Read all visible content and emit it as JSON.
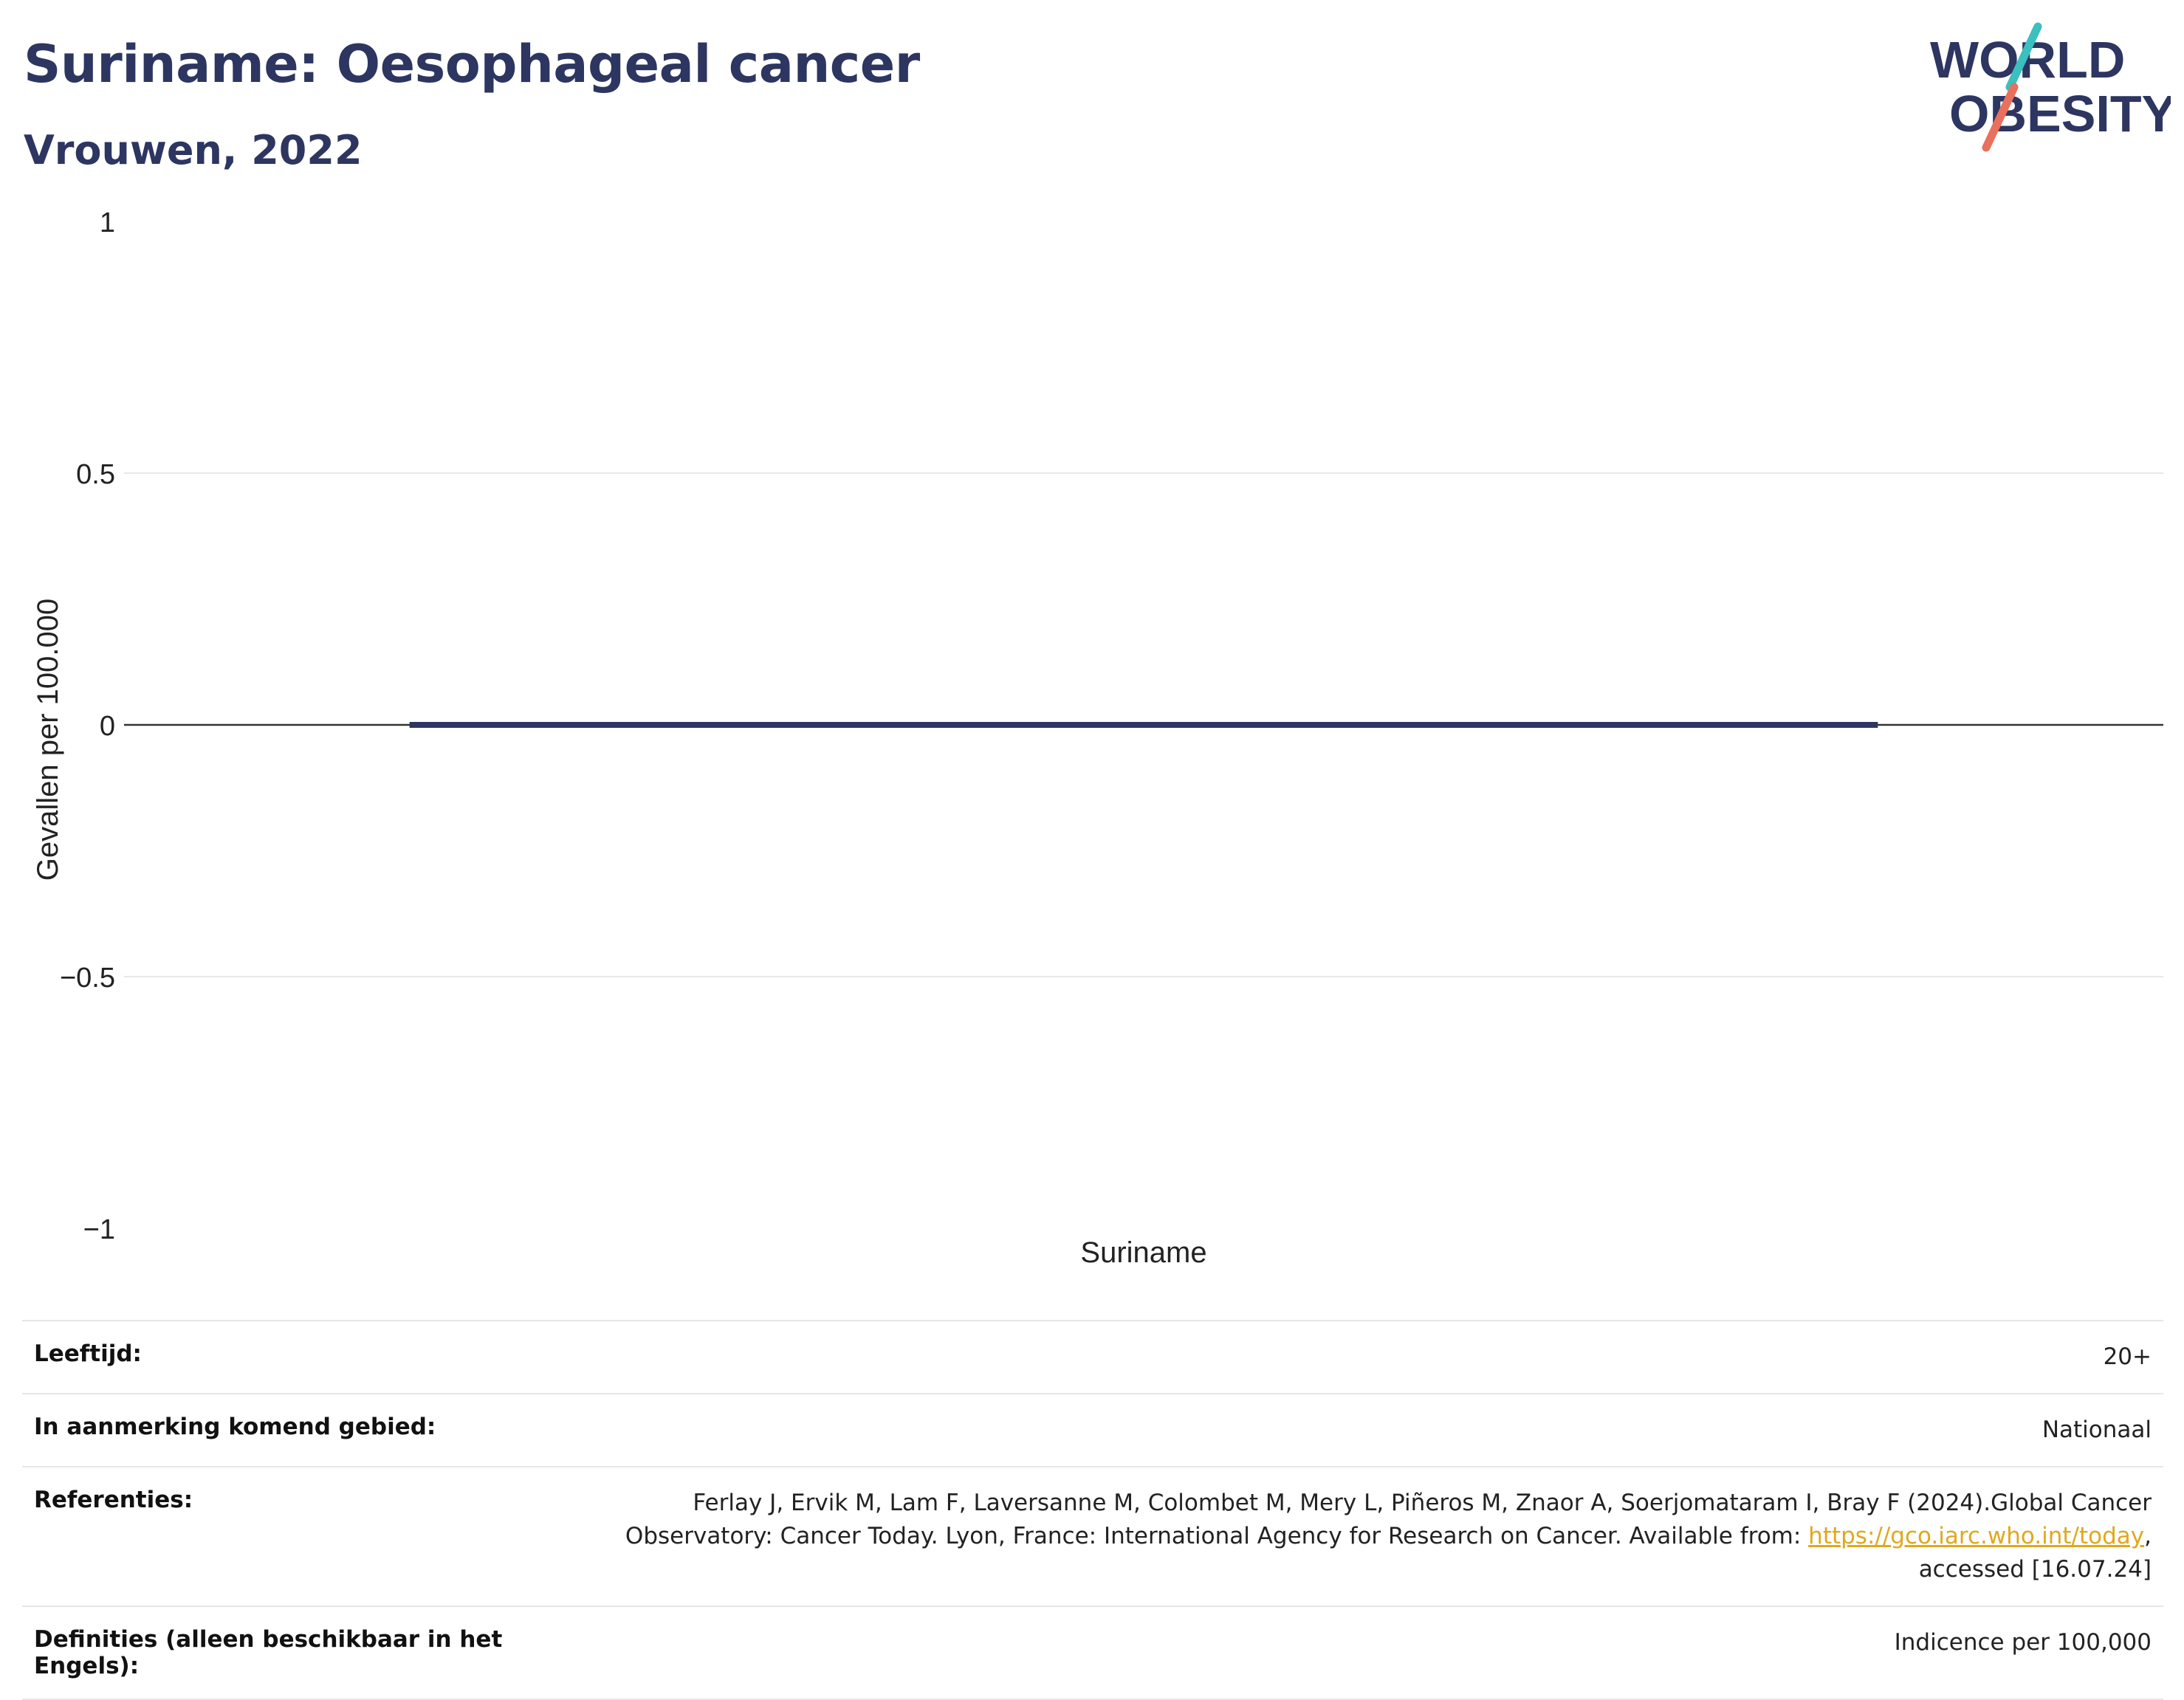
{
  "header": {
    "title": "Suriname: Oesophageal cancer",
    "subtitle": "Vrouwen, 2022"
  },
  "logo": {
    "line1": "WORLD",
    "line2": "OBESITY",
    "colors": {
      "text": "#2d3561",
      "slash_top": "#3bbfbf",
      "slash_bottom": "#e8705c"
    }
  },
  "chart_data": {
    "type": "bar",
    "categories": [
      "Suriname"
    ],
    "values": [
      0
    ],
    "ylabel": "Gevallen per 100.000",
    "xlabel": "",
    "ylim": [
      -1,
      1
    ],
    "yticks": [
      {
        "value": 1,
        "label": "1"
      },
      {
        "value": 0.5,
        "label": "0.5"
      },
      {
        "value": 0,
        "label": "0"
      },
      {
        "value": -0.5,
        "label": "−0.5"
      },
      {
        "value": -1,
        "label": "−1"
      }
    ],
    "grid": true,
    "bar_color": "#2d3561"
  },
  "meta": {
    "age_label": "Leeftijd:",
    "age_value": "20+",
    "area_label": "In aanmerking komend gebied:",
    "area_value": "Nationaal",
    "ref_label": "Referenties:",
    "ref_text_1": "Ferlay J, Ervik M, Lam F, Laversanne M, Colombet M, Mery L, Piñeros M, Znaor A, Soerjomataram I, Bray F (2024).Global Cancer Observatory: Cancer Today. Lyon, France: International Agency for Research on Cancer. Available from: ",
    "ref_link": "https://gco.iarc.who.int/today",
    "ref_text_2": ", accessed [16.07.24]",
    "def_label": "Definities (alleen beschikbaar in het Engels):",
    "def_value": "Indicence per 100,000"
  }
}
